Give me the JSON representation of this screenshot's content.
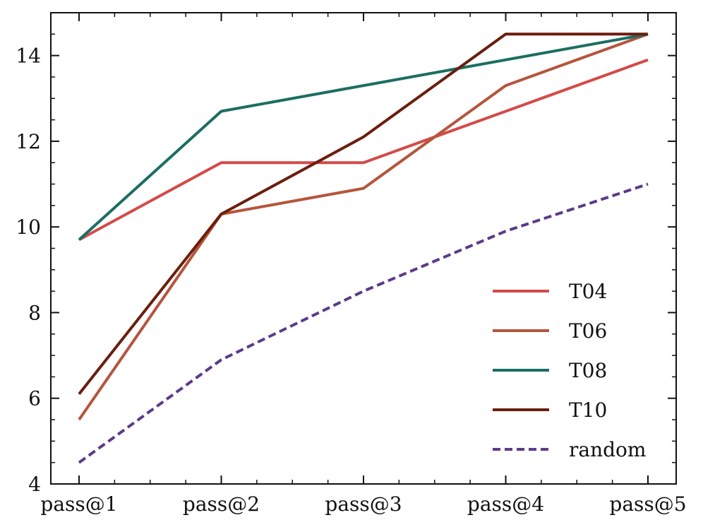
{
  "chart_data": {
    "type": "line",
    "title": "",
    "xlabel": "",
    "ylabel": "",
    "categories": [
      "pass@1",
      "pass@2",
      "pass@3",
      "pass@4",
      "pass@5"
    ],
    "ylim": [
      4,
      15
    ],
    "yticks": [
      4,
      6,
      8,
      10,
      12,
      14
    ],
    "grid": false,
    "legend_position": "bottom-right",
    "series": [
      {
        "name": "T04",
        "color": "#d44a48",
        "dashed": false,
        "values": [
          9.7,
          11.5,
          11.5,
          12.7,
          13.9
        ]
      },
      {
        "name": "T06",
        "color": "#b5553c",
        "dashed": false,
        "values": [
          5.5,
          10.3,
          10.9,
          13.3,
          14.5
        ]
      },
      {
        "name": "T08",
        "color": "#1a6e62",
        "dashed": false,
        "values": [
          9.7,
          12.7,
          13.3,
          13.9,
          14.5
        ]
      },
      {
        "name": "T10",
        "color": "#6b1e0e",
        "dashed": false,
        "values": [
          6.1,
          10.3,
          12.1,
          14.5,
          14.5
        ]
      },
      {
        "name": "random",
        "color": "#5b3a8a",
        "dashed": true,
        "values": [
          4.5,
          6.9,
          8.5,
          9.9,
          11.0
        ]
      }
    ]
  }
}
